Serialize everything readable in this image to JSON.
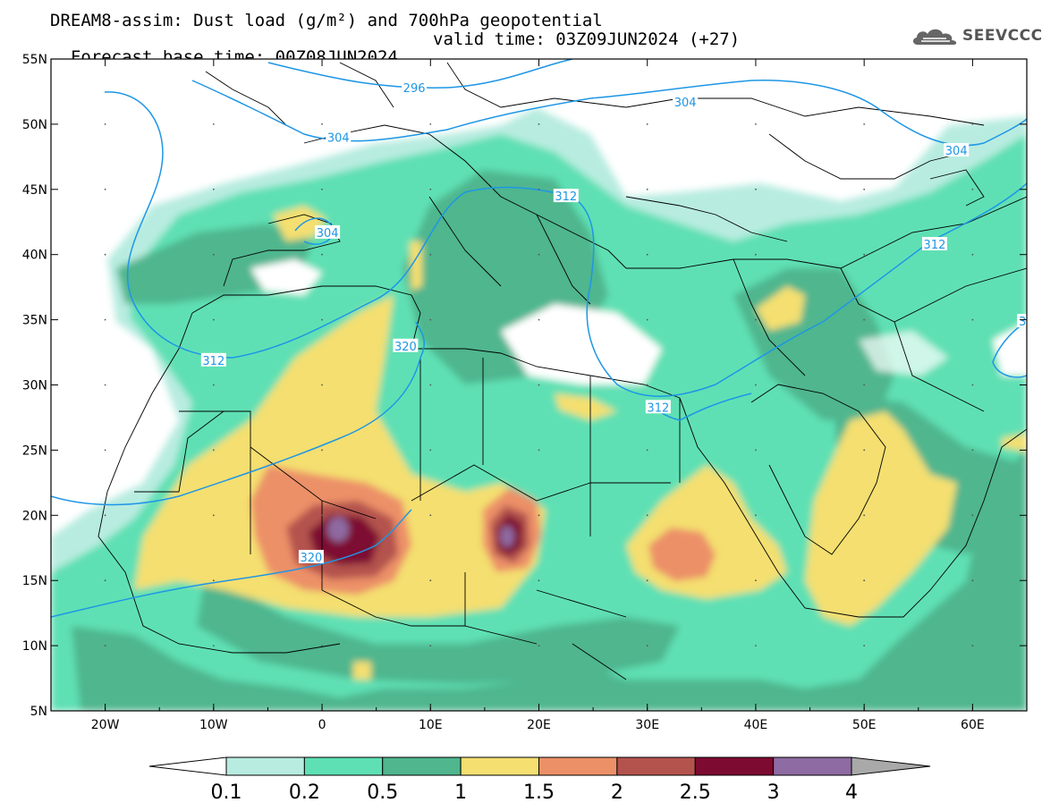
{
  "header": {
    "title_line1": "DREAM8-assim: Dust load (g/m²) and 700hPa geopotential",
    "title_line2_base": "Forecast base time: 00Z08JUN2024",
    "title_line2_valid": "valid time: 03Z09JUN2024 (+27)",
    "logo_text": "SEEVCCC",
    "logo_icon": "cloud-icon"
  },
  "map": {
    "lon_range": [
      -25,
      65
    ],
    "lat_range": [
      5,
      55
    ],
    "lon_ticks": [
      {
        "value": -20,
        "label": "20W"
      },
      {
        "value": -10,
        "label": "10W"
      },
      {
        "value": 0,
        "label": "0"
      },
      {
        "value": 10,
        "label": "10E"
      },
      {
        "value": 20,
        "label": "20E"
      },
      {
        "value": 30,
        "label": "30E"
      },
      {
        "value": 40,
        "label": "40E"
      },
      {
        "value": 50,
        "label": "50E"
      },
      {
        "value": 60,
        "label": "60E"
      }
    ],
    "lat_ticks": [
      {
        "value": 55,
        "label": "55N"
      },
      {
        "value": 50,
        "label": "50N"
      },
      {
        "value": 45,
        "label": "45N"
      },
      {
        "value": 40,
        "label": "40N"
      },
      {
        "value": 35,
        "label": "35N"
      },
      {
        "value": 30,
        "label": "30N"
      },
      {
        "value": 25,
        "label": "25N"
      },
      {
        "value": 20,
        "label": "20N"
      },
      {
        "value": 15,
        "label": "15N"
      },
      {
        "value": 10,
        "label": "10N"
      },
      {
        "value": 5,
        "label": "5N"
      }
    ],
    "contour_labels": [
      {
        "text": "296",
        "lon": 8.5,
        "lat": 52.8
      },
      {
        "text": "304",
        "lon": 33.5,
        "lat": 51.7
      },
      {
        "text": "304",
        "lon": 1.5,
        "lat": 49.0
      },
      {
        "text": "304",
        "lon": 58.5,
        "lat": 48.0
      },
      {
        "text": "304",
        "lon": 0.5,
        "lat": 41.7
      },
      {
        "text": "312",
        "lon": 22.5,
        "lat": 44.5
      },
      {
        "text": "312",
        "lon": 56.5,
        "lat": 40.8
      },
      {
        "text": "312",
        "lon": -10.0,
        "lat": 31.9
      },
      {
        "text": "312",
        "lon": 31.0,
        "lat": 28.3
      },
      {
        "text": "320",
        "lon": 7.7,
        "lat": 33.0
      },
      {
        "text": "320",
        "lon": -1.0,
        "lat": 16.8
      },
      {
        "text": "3",
        "lon": 64.6,
        "lat": 34.9
      }
    ]
  },
  "colorbar": {
    "tick_labels": [
      "0.1",
      "0.2",
      "0.5",
      "1",
      "1.5",
      "2",
      "2.5",
      "3",
      "4"
    ],
    "colors": [
      "#ffffff",
      "#b8ece0",
      "#5ee0b4",
      "#4fb68e",
      "#f4df70",
      "#ec9068",
      "#b4534e",
      "#7d0a30",
      "#8e6ba2",
      "#a9a9a9"
    ]
  },
  "colors": {
    "contour": "#1e96e6",
    "border": "#000000"
  }
}
